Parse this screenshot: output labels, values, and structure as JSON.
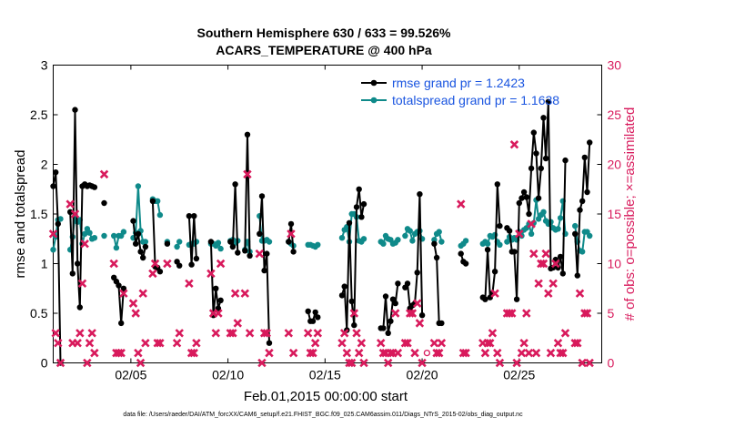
{
  "chart_data": {
    "type": "line",
    "title": "Southern Hemisphere 630 / 633 = 99.526%",
    "subtitle": "ACARS_TEMPERATURE @ 400 hPa",
    "xlabel": "Feb.01,2015 00:00:00 start",
    "ylabel": "rmse and totalspread",
    "ylabel_right": "# of obs: o=possible; ×=assimilated",
    "footer": "data file: /Users/raeder/DAI/ATM_forcXX/CAM6_setup/f.e21.FHIST_BGC.f09_025.CAM6assim.011/Diags_NTrS_2015-02/obs_diag_output.nc",
    "xlim": [
      1.0,
      29.25
    ],
    "ylim": [
      0,
      3
    ],
    "ylim_right": [
      0,
      30
    ],
    "x_ticks": [
      5,
      10,
      15,
      20,
      25
    ],
    "x_tick_labels": [
      "02/05",
      "02/10",
      "02/15",
      "02/20",
      "02/25"
    ],
    "y_ticks": [
      "0",
      "0.5",
      "1",
      "1.5",
      "2",
      "2.5",
      "3"
    ],
    "y_ticks_right": [
      "0",
      "5",
      "10",
      "15",
      "20",
      "25",
      "30"
    ],
    "grid": false,
    "legend_position": "top-right",
    "colors": {
      "rmse": "#000000",
      "spread": "#0f8a8a",
      "obs": "#d81a5c",
      "legend_text": "#1a55e0",
      "right_axis": "#d81a5c"
    },
    "series": [
      {
        "name": "rmse grand pr = 1.2423",
        "key": "rmse",
        "x": [
          1.0,
          1.125,
          1.25,
          1.375,
          1.875,
          2.0,
          2.125,
          2.25,
          2.375,
          2.5,
          2.625,
          2.75,
          2.875,
          3.0,
          3.125,
          3.625,
          4.125,
          4.25,
          4.375,
          4.5,
          4.625,
          5.125,
          5.25,
          5.375,
          5.5,
          5.625,
          5.75,
          6.125,
          6.25,
          6.375,
          6.5,
          6.875,
          7.375,
          7.5,
          8.0,
          8.125,
          8.25,
          8.375,
          9.125,
          9.25,
          9.375,
          9.5,
          9.625,
          10.125,
          10.25,
          10.375,
          10.5,
          10.875,
          11.0,
          11.125,
          11.625,
          11.75,
          11.875,
          12.0,
          12.125,
          13.125,
          13.25,
          13.375,
          14.125,
          14.25,
          14.375,
          14.5,
          14.625,
          15.875,
          16.0,
          16.125,
          16.25,
          16.375,
          16.5,
          16.625,
          16.75,
          16.875,
          17.0,
          17.875,
          18.0,
          18.125,
          18.25,
          18.375,
          18.5,
          18.625,
          18.75,
          19.125,
          19.25,
          19.375,
          19.5,
          19.625,
          19.75,
          19.875,
          20.0,
          20.625,
          20.75,
          20.875,
          21.0,
          22.0,
          22.125,
          22.25,
          23.125,
          23.25,
          23.375,
          23.5,
          23.625,
          23.75,
          23.875,
          24.0,
          24.375,
          24.5,
          24.625,
          24.75,
          24.875,
          25.0,
          25.125,
          25.25,
          25.375,
          25.5,
          25.625,
          25.75,
          25.875,
          26.0,
          26.125,
          26.25,
          26.375,
          26.5,
          26.625,
          26.75,
          26.875,
          27.0,
          27.125,
          27.25,
          27.375,
          27.875,
          28.0,
          28.125,
          28.25,
          28.375,
          28.5,
          28.625
        ],
        "y": [
          1.78,
          1.92,
          1.4,
          0.0,
          1.52,
          0.9,
          2.55,
          1.0,
          0.56,
          1.78,
          1.8,
          1.78,
          1.79,
          1.78,
          1.77,
          1.61,
          0.86,
          0.82,
          0.78,
          0.4,
          0.75,
          1.43,
          1.2,
          1.3,
          1.12,
          1.06,
          1.17,
          1.63,
          0.97,
          0.96,
          0.92,
          1.2,
          1.02,
          0.98,
          1.48,
          0.99,
          1.48,
          1.05,
          1.22,
          0.48,
          0.75,
          0.55,
          0.63,
          1.22,
          1.17,
          1.8,
          1.11,
          1.13,
          2.3,
          1.08,
          1.3,
          1.68,
          0.93,
          1.1,
          0.2,
          1.22,
          1.4,
          1.12,
          0.52,
          0.42,
          0.42,
          0.51,
          0.46,
          0.68,
          0.77,
          0.33,
          1.41,
          0.62,
          0.38,
          1.57,
          1.75,
          1.47,
          1.6,
          0.35,
          0.35,
          0.67,
          0.3,
          0.42,
          0.64,
          0.6,
          0.8,
          0.76,
          0.8,
          0.55,
          0.58,
          0.6,
          0.91,
          1.7,
          0.48,
          1.2,
          1.06,
          0.4,
          0.4,
          1.1,
          1.02,
          1.0,
          0.66,
          0.64,
          1.14,
          0.66,
          0.7,
          0.92,
          1.8,
          1.38,
          1.36,
          1.33,
          1.12,
          1.12,
          0.64,
          1.61,
          1.66,
          1.72,
          1.67,
          1.5,
          1.96,
          2.32,
          2.11,
          1.66,
          1.96,
          2.47,
          2.06,
          2.63,
          0.95,
          0.96,
          1.04,
          0.96,
          1.07,
          0.9,
          2.04,
          1.3,
          0.88,
          1.54,
          1.63,
          2.07,
          1.72,
          2.22
        ]
      },
      {
        "name": "totalspread grand pr = 1.1638",
        "key": "spread",
        "x": [
          1.0,
          1.125,
          1.25,
          1.375,
          1.875,
          2.0,
          2.125,
          2.25,
          2.375,
          2.5,
          2.625,
          2.75,
          2.875,
          3.0,
          3.125,
          3.625,
          4.125,
          4.25,
          4.375,
          4.5,
          4.625,
          5.125,
          5.25,
          5.375,
          5.5,
          5.625,
          5.75,
          6.125,
          6.25,
          6.375,
          6.5,
          6.875,
          7.375,
          7.5,
          8.0,
          8.125,
          8.25,
          8.375,
          9.125,
          9.25,
          9.375,
          9.5,
          9.625,
          10.125,
          10.25,
          10.375,
          10.5,
          10.875,
          11.0,
          11.125,
          11.625,
          11.75,
          11.875,
          12.0,
          12.125,
          13.125,
          13.25,
          13.375,
          14.125,
          14.25,
          14.375,
          14.5,
          14.625,
          15.875,
          16.0,
          16.125,
          16.25,
          16.375,
          16.5,
          16.625,
          16.75,
          16.875,
          17.0,
          17.875,
          18.0,
          18.125,
          18.25,
          18.375,
          18.5,
          18.625,
          18.75,
          19.125,
          19.25,
          19.375,
          19.5,
          19.625,
          19.75,
          19.875,
          20.0,
          20.625,
          20.75,
          20.875,
          21.0,
          22.0,
          22.125,
          22.25,
          23.125,
          23.25,
          23.375,
          23.5,
          23.625,
          23.75,
          23.875,
          24.0,
          24.375,
          24.5,
          24.625,
          24.75,
          24.875,
          25.0,
          25.125,
          25.25,
          25.375,
          25.5,
          25.625,
          25.75,
          25.875,
          26.0,
          26.125,
          26.25,
          26.375,
          26.5,
          26.625,
          26.75,
          26.875,
          27.0,
          27.125,
          27.25,
          27.375,
          27.875,
          28.0,
          28.125,
          28.25,
          28.375,
          28.5,
          28.625
        ],
        "y": [
          1.14,
          1.27,
          1.44,
          1.45,
          1.14,
          1.27,
          1.48,
          1.42,
          1.44,
          1.2,
          1.3,
          1.35,
          1.31,
          1.25,
          1.26,
          1.28,
          1.28,
          1.16,
          1.28,
          1.28,
          1.32,
          1.26,
          1.31,
          1.78,
          1.33,
          1.22,
          1.22,
          1.65,
          1.63,
          1.63,
          1.49,
          1.22,
          1.17,
          1.22,
          1.19,
          1.2,
          1.2,
          1.22,
          1.2,
          1.2,
          1.18,
          1.21,
          1.15,
          1.23,
          1.24,
          1.21,
          1.23,
          1.14,
          1.22,
          1.12,
          1.48,
          1.23,
          1.23,
          1.24,
          1.22,
          1.22,
          1.2,
          1.18,
          1.19,
          1.19,
          1.18,
          1.17,
          1.19,
          1.26,
          1.34,
          1.37,
          1.22,
          1.5,
          1.5,
          1.47,
          1.23,
          1.22,
          1.25,
          1.22,
          1.2,
          1.28,
          1.25,
          1.24,
          1.2,
          1.21,
          1.24,
          1.28,
          1.35,
          1.33,
          1.23,
          1.3,
          1.32,
          1.33,
          1.25,
          1.24,
          1.3,
          1.32,
          1.22,
          1.18,
          1.2,
          1.23,
          1.2,
          1.22,
          1.2,
          1.28,
          1.27,
          1.29,
          1.22,
          1.19,
          1.22,
          1.27,
          1.24,
          1.26,
          1.24,
          1.32,
          1.28,
          1.34,
          1.36,
          1.4,
          1.3,
          1.41,
          1.64,
          1.45,
          1.49,
          1.52,
          1.43,
          1.4,
          1.42,
          1.36,
          1.34,
          1.35,
          1.46,
          1.63,
          1.3,
          1.38,
          1.22,
          1.13,
          1.12,
          1.32,
          1.32,
          1.28
        ]
      },
      {
        "name": "assimilated",
        "key": "obs",
        "x": [
          1.0,
          1.125,
          1.25,
          1.375,
          1.875,
          2.0,
          2.125,
          2.25,
          2.375,
          2.5,
          2.625,
          2.75,
          2.875,
          3.0,
          3.125,
          3.625,
          4.125,
          4.25,
          4.375,
          4.5,
          4.625,
          5.125,
          5.25,
          5.375,
          5.5,
          5.625,
          5.75,
          6.125,
          6.25,
          6.375,
          6.5,
          6.875,
          7.375,
          7.5,
          8.0,
          8.125,
          8.25,
          8.375,
          9.125,
          9.25,
          9.375,
          9.5,
          9.625,
          10.125,
          10.25,
          10.375,
          10.5,
          10.875,
          11.0,
          11.125,
          11.625,
          11.75,
          11.875,
          12.0,
          12.125,
          13.125,
          13.25,
          13.375,
          14.125,
          14.25,
          14.375,
          14.5,
          14.625,
          15.875,
          16.0,
          16.125,
          16.25,
          16.375,
          16.5,
          16.625,
          16.75,
          16.875,
          17.0,
          17.875,
          18.0,
          18.125,
          18.25,
          18.375,
          18.5,
          18.625,
          18.75,
          19.125,
          19.25,
          19.375,
          19.5,
          19.625,
          19.75,
          19.875,
          20.0,
          20.625,
          20.75,
          20.875,
          21.0,
          22.0,
          22.125,
          22.25,
          23.125,
          23.25,
          23.375,
          23.5,
          23.625,
          23.75,
          23.875,
          24.0,
          24.375,
          24.5,
          24.625,
          24.75,
          24.875,
          25.0,
          25.125,
          25.25,
          25.375,
          25.5,
          25.625,
          25.75,
          25.875,
          26.0,
          26.125,
          26.25,
          26.375,
          26.5,
          26.625,
          26.75,
          26.875,
          27.0,
          27.125,
          27.25,
          27.375,
          27.875,
          28.0,
          28.125,
          28.25,
          28.375,
          28.5,
          28.625
        ],
        "y": [
          13,
          3,
          2,
          0,
          16,
          2,
          15,
          2,
          3,
          8,
          12,
          0,
          2,
          3,
          1,
          19,
          10,
          1,
          1,
          1,
          7,
          6,
          5,
          1,
          0,
          7,
          2,
          9,
          10,
          2,
          2,
          10,
          2,
          3,
          8,
          1,
          1,
          2,
          9,
          5,
          3,
          5,
          10,
          3,
          3,
          7,
          4,
          7,
          19,
          3,
          11,
          0,
          3,
          3,
          1,
          3,
          13,
          1,
          3,
          1,
          1,
          2,
          3,
          2,
          3,
          1,
          0,
          0,
          5,
          3,
          1,
          2,
          0,
          2,
          1,
          1,
          0,
          1,
          1,
          5,
          1,
          2,
          2,
          5,
          5,
          1,
          6,
          4,
          0,
          2,
          1,
          1,
          2,
          16,
          1,
          1,
          2,
          1,
          2,
          2,
          3,
          7,
          1,
          0,
          5,
          5,
          5,
          22,
          0,
          13,
          1,
          2,
          5,
          1,
          14,
          11,
          1,
          8,
          10,
          10,
          11,
          7,
          1,
          8,
          10,
          2,
          1,
          1,
          3,
          2,
          2,
          7,
          0,
          5,
          5,
          0
        ]
      }
    ],
    "possible_marker": {
      "x": 20.25,
      "y": 1
    }
  }
}
